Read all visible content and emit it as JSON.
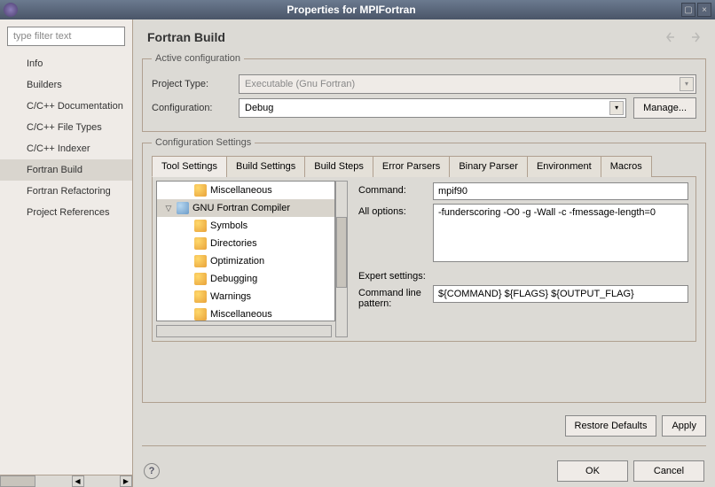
{
  "window": {
    "title": "Properties for MPIFortran"
  },
  "sidebar": {
    "filter_placeholder": "type filter text",
    "items": [
      "Info",
      "Builders",
      "C/C++ Documentation",
      "C/C++ File Types",
      "C/C++ Indexer",
      "Fortran Build",
      "Fortran Refactoring",
      "Project References"
    ],
    "selected_index": 5
  },
  "header": {
    "title": "Fortran Build"
  },
  "active_config": {
    "legend": "Active configuration",
    "project_type_label": "Project Type:",
    "project_type_value": "Executable (Gnu Fortran)",
    "configuration_label": "Configuration:",
    "configuration_value": "Debug",
    "manage_label": "Manage..."
  },
  "config_settings": {
    "legend": "Configuration Settings",
    "tabs": [
      "Tool Settings",
      "Build Settings",
      "Build Steps",
      "Error Parsers",
      "Binary Parser",
      "Environment",
      "Macros"
    ],
    "active_tab": 0,
    "tree": [
      {
        "label": "Miscellaneous",
        "level": 1,
        "icon": "folder"
      },
      {
        "label": "GNU Fortran Compiler",
        "level": 0,
        "icon": "tool",
        "expanded": true,
        "selected": true
      },
      {
        "label": "Symbols",
        "level": 1,
        "icon": "folder"
      },
      {
        "label": "Directories",
        "level": 1,
        "icon": "folder"
      },
      {
        "label": "Optimization",
        "level": 1,
        "icon": "folder"
      },
      {
        "label": "Debugging",
        "level": 1,
        "icon": "folder"
      },
      {
        "label": "Warnings",
        "level": 1,
        "icon": "folder"
      },
      {
        "label": "Miscellaneous",
        "level": 1,
        "icon": "folder"
      }
    ],
    "command_label": "Command:",
    "command_value": "mpif90",
    "all_options_label": "All options:",
    "all_options_value": "-funderscoring -O0 -g -Wall -c -fmessage-length=0",
    "expert_label": "Expert settings:",
    "pattern_label": "Command line pattern:",
    "pattern_value": "${COMMAND} ${FLAGS} ${OUTPUT_FLAG}"
  },
  "footer": {
    "restore_label": "Restore Defaults",
    "apply_label": "Apply",
    "ok_label": "OK",
    "cancel_label": "Cancel"
  }
}
